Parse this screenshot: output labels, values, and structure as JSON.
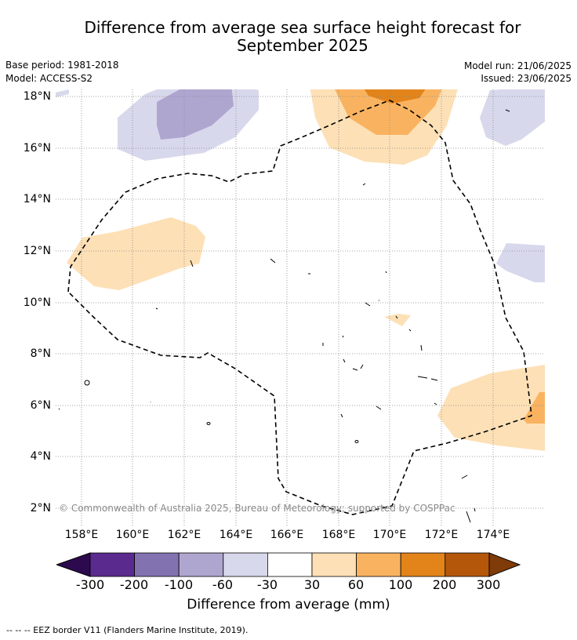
{
  "title_line1": "Difference from average sea surface height forecast for",
  "title_line2": "September 2025",
  "meta": {
    "base_period": "Base period: 1981-2018",
    "model": "Model: ACCESS-S2",
    "model_run": "Model run: 21/06/2025",
    "issued": "Issued: 23/06/2025"
  },
  "map": {
    "lat_labels": [
      "18°N",
      "16°N",
      "14°N",
      "12°N",
      "10°N",
      "8°N",
      "6°N",
      "4°N",
      "2°N"
    ],
    "lon_labels": [
      "158°E",
      "160°E",
      "162°E",
      "164°E",
      "166°E",
      "168°E",
      "170°E",
      "172°E",
      "174°E"
    ],
    "copyright": "© Commonwealth of Australia 2025, Bureau of Meteorology; supported by COSPPac"
  },
  "colorbar": {
    "ticks": [
      "-300",
      "-200",
      "-100",
      "-60",
      "-30",
      "30",
      "60",
      "100",
      "200",
      "300"
    ],
    "colors": [
      "#2d0a4e",
      "#5b2a8e",
      "#8272b0",
      "#afa6d0",
      "#d8d8ec",
      "#ffffff",
      "#fde0b6",
      "#f9b360",
      "#e2841a",
      "#b4570b",
      "#7f3b08"
    ],
    "label": "Difference from average (mm)"
  },
  "legend_note": "-- -- -- EEZ border V11 (Flanders Marine Institute, 2019)."
}
